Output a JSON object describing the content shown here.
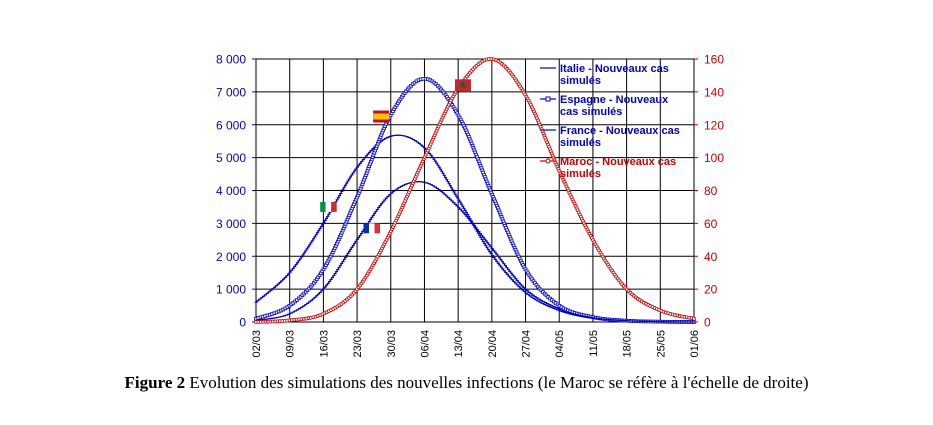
{
  "chart_data": {
    "type": "line",
    "x_tick_labels": [
      "02/03",
      "09/03",
      "16/03",
      "23/03",
      "30/03",
      "06/04",
      "13/04",
      "20/04",
      "27/04",
      "04/05",
      "11/05",
      "18/05",
      "25/05",
      "01/06"
    ],
    "x_range": [
      "2020-03-02",
      "2020-06-01"
    ],
    "y_left": {
      "ylim": [
        0,
        8000
      ],
      "ticks": [
        "0",
        "1 000",
        "2 000",
        "3 000",
        "4 000",
        "5 000",
        "6 000",
        "7 000",
        "8 000"
      ],
      "color": "#0000cc"
    },
    "y_right": {
      "ylim": [
        0,
        160
      ],
      "ticks": [
        "0",
        "20",
        "40",
        "60",
        "80",
        "100",
        "120",
        "140",
        "160"
      ],
      "color": "#cc0000"
    },
    "grid": true,
    "legend_position": "top-right",
    "series": [
      {
        "name": "Italie - Nouveaux cas simulés",
        "axis": "left",
        "color": "#0000cc",
        "marker": "dash",
        "peak_date": "2020-04-01",
        "peak_value": 5700,
        "x": [
          "2020-03-02",
          "2020-03-09",
          "2020-03-16",
          "2020-03-23",
          "2020-03-30",
          "2020-04-06",
          "2020-04-13",
          "2020-04-20",
          "2020-04-27",
          "2020-05-04",
          "2020-05-11",
          "2020-05-18",
          "2020-05-25",
          "2020-06-01"
        ],
        "y": [
          600,
          1500,
          3000,
          4700,
          5650,
          5300,
          3750,
          2050,
          900,
          350,
          110,
          40,
          10,
          0
        ]
      },
      {
        "name": "Espagne - Nouveaux cas simulés",
        "axis": "left",
        "color": "#0000cc",
        "marker": "square",
        "peak_date": "2020-04-05",
        "peak_value": 7450,
        "x": [
          "2020-03-02",
          "2020-03-09",
          "2020-03-16",
          "2020-03-23",
          "2020-03-30",
          "2020-04-06",
          "2020-04-13",
          "2020-04-20",
          "2020-04-27",
          "2020-05-04",
          "2020-05-11",
          "2020-05-18",
          "2020-05-25",
          "2020-06-01"
        ],
        "y": [
          100,
          500,
          1600,
          3800,
          6300,
          7400,
          6300,
          3900,
          1600,
          500,
          150,
          40,
          10,
          0
        ]
      },
      {
        "name": "France - Nouveaux cas simulés",
        "axis": "left",
        "color": "#0000cc",
        "marker": "dash",
        "peak_date": "2020-04-05",
        "peak_value": 4300,
        "x": [
          "2020-03-02",
          "2020-03-09",
          "2020-03-16",
          "2020-03-23",
          "2020-03-30",
          "2020-04-06",
          "2020-04-13",
          "2020-04-20",
          "2020-04-27",
          "2020-05-04",
          "2020-05-11",
          "2020-05-18",
          "2020-05-25",
          "2020-06-01"
        ],
        "y": [
          50,
          250,
          1000,
          2500,
          3900,
          4250,
          3500,
          2250,
          1000,
          400,
          130,
          40,
          10,
          0
        ]
      },
      {
        "name": "Maroc - Nouveaux cas simulés",
        "axis": "right",
        "color": "#cc0000",
        "marker": "circle",
        "peak_date": "2020-04-20",
        "peak_value": 160,
        "x": [
          "2020-03-02",
          "2020-03-09",
          "2020-03-16",
          "2020-03-23",
          "2020-03-30",
          "2020-04-06",
          "2020-04-13",
          "2020-04-20",
          "2020-04-27",
          "2020-05-04",
          "2020-05-11",
          "2020-05-18",
          "2020-05-25",
          "2020-06-01"
        ],
        "y": [
          0,
          1,
          5,
          20,
          55,
          100,
          142,
          160,
          138,
          92,
          50,
          20,
          7,
          2
        ]
      }
    ],
    "flags": [
      {
        "country": "Italie",
        "date": "2020-03-17",
        "value": 3500
      },
      {
        "country": "Espagne",
        "date": "2020-03-28",
        "value": 6250
      },
      {
        "country": "France",
        "date": "2020-03-26",
        "value": 2850
      },
      {
        "country": "Maroc",
        "date": "2020-04-14",
        "value": 144,
        "axis": "right"
      }
    ]
  },
  "caption": {
    "label": "Figure 2",
    "text": " Evolution des simulations des nouvelles infections (le Maroc se réfère à l'échelle de droite)"
  }
}
